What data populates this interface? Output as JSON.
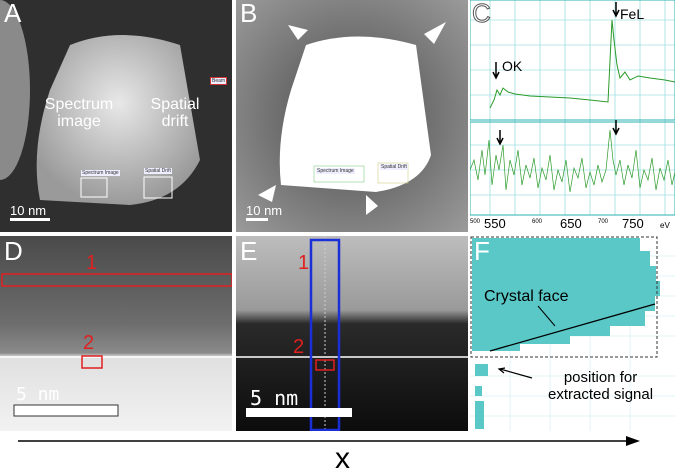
{
  "panels": {
    "A": {
      "label": "A",
      "annot_spectrum": "Spectrum\nimage",
      "annot_drift": "Spatial\ndrift",
      "tag_spectrum": "Spectrum Image",
      "tag_drift": "Spatial Drift",
      "tag_beam": "Beam",
      "scale": "10 nm"
    },
    "B": {
      "label": "B",
      "tag_spectrum": "Spectrum Image",
      "tag_drift": "Spatial Drift",
      "scale": "10 nm"
    },
    "C": {
      "label": "C",
      "peak_fe": "FeL",
      "peak_o": "OK",
      "xticks": [
        "550",
        "650",
        "750"
      ],
      "xticks_small": [
        "500",
        "600",
        "700"
      ],
      "unit": "eV"
    },
    "D": {
      "label": "D",
      "mark1": "1",
      "mark2": "2",
      "scale": "5 nm"
    },
    "E": {
      "label": "E",
      "mark1": "1",
      "mark2": "2",
      "scale": "5 nm"
    },
    "F": {
      "label": "F",
      "crystal_face": "Crystal face",
      "position_text": "position for\nextracted signal"
    }
  },
  "axis_label": "x",
  "colors": {
    "teal": "#5bc8c8",
    "red": "#e02020",
    "blue": "#1a2fd6",
    "green": "#2a9a2a"
  }
}
